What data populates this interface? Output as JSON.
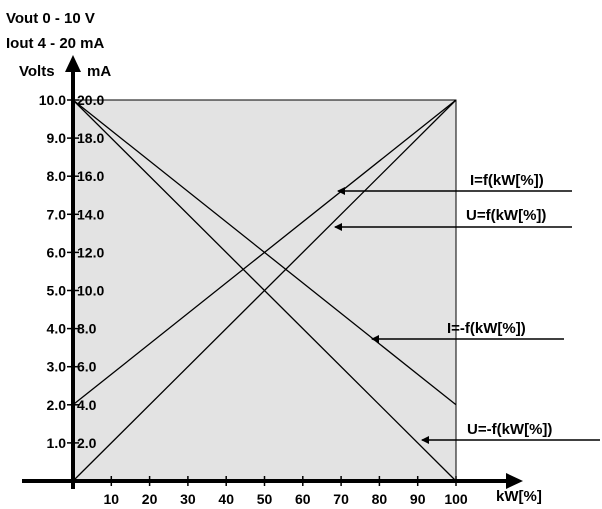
{
  "chart_data": {
    "type": "line",
    "title_lines": [
      "Vout 0 - 10 V",
      "Iout 4 - 20 mA"
    ],
    "ylabel_left": "Volts",
    "ylabel_right": "mA",
    "xlabel": "kW[%]",
    "xlim": [
      0,
      100
    ],
    "ylim_volts": [
      0,
      10
    ],
    "ylim_ma": [
      0,
      20
    ],
    "x_ticks": [
      "10",
      "20",
      "30",
      "40",
      "50",
      "60",
      "70",
      "80",
      "90",
      "100"
    ],
    "y_ticks_volts": [
      "1.0",
      "2.0",
      "3.0",
      "4.0",
      "5.0",
      "6.0",
      "7.0",
      "8.0",
      "9.0",
      "10.0"
    ],
    "y_ticks_ma": [
      "2.0",
      "4.0",
      "6.0",
      "8.0",
      "10.0",
      "12.0",
      "14.0",
      "16.0",
      "18.0",
      "20.0"
    ],
    "series": [
      {
        "name": "I=f(kW[%])",
        "x": [
          0,
          100
        ],
        "y_ma": [
          4,
          20
        ]
      },
      {
        "name": "U=f(kW[%])",
        "x": [
          0,
          100
        ],
        "y_volts": [
          0,
          10
        ]
      },
      {
        "name": "I=-f(kW[%])",
        "x": [
          0,
          100
        ],
        "y_ma": [
          20,
          4
        ]
      },
      {
        "name": "U=-f(kW[%])",
        "x": [
          0,
          100
        ],
        "y_volts": [
          10,
          0
        ]
      }
    ]
  }
}
